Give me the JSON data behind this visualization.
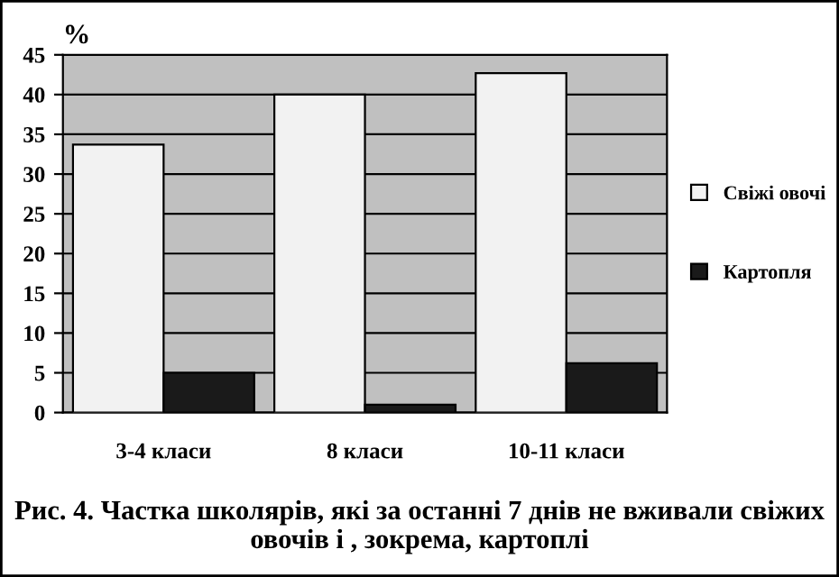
{
  "chart_data": {
    "type": "bar",
    "title": "Рис. 4. Частка школярів, які за останні 7 днів не вживали свіжих овочів і , зокрема, картоплі",
    "ylabel": "%",
    "categories": [
      "3-4 класи",
      "8 класи",
      "10-11 класи"
    ],
    "series": [
      {
        "name": "Свіжі овочі",
        "color": "#f2f2f2",
        "values": [
          33.7,
          40,
          42.7
        ]
      },
      {
        "name": "Картопля",
        "color": "#1a1a1a",
        "values": [
          5,
          1,
          6.2
        ]
      }
    ],
    "ylim": [
      0,
      45
    ],
    "yticks": [
      0,
      5,
      10,
      15,
      20,
      25,
      30,
      35,
      40,
      45
    ],
    "grid": "y",
    "legend": "right"
  }
}
